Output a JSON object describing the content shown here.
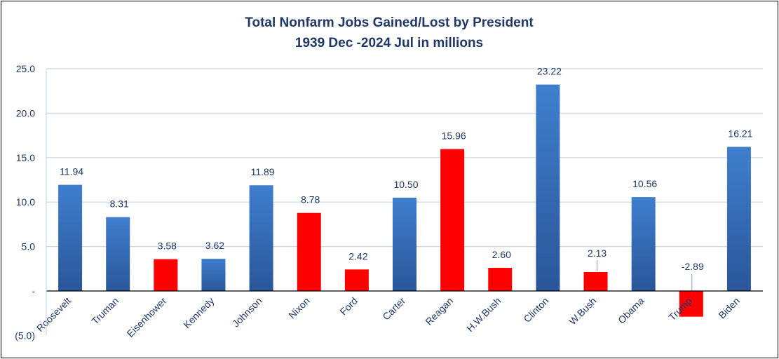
{
  "chart_data": {
    "type": "bar",
    "title": "Total Nonfarm Jobs Gained/Lost by President",
    "subtitle": "1939 Dec -2024 Jul in millions",
    "xlabel": "",
    "ylabel": "",
    "ylim": [
      -5,
      25
    ],
    "yticks": [
      {
        "value": 25,
        "label": "25.0"
      },
      {
        "value": 20,
        "label": "20.0"
      },
      {
        "value": 15,
        "label": "15.0"
      },
      {
        "value": 10,
        "label": "10.0"
      },
      {
        "value": 5,
        "label": "5.0"
      },
      {
        "value": 0,
        "label": "-"
      },
      {
        "value": -5,
        "label": "(5.0)"
      }
    ],
    "grid": true,
    "legend": "none",
    "categories": [
      "Roosevelt",
      "Truman",
      "Eisenhower",
      "Kennedy",
      "Johnson",
      "Nixon",
      "Ford",
      "Carter",
      "Reagan",
      "H.W.Bush",
      "Clinton",
      "W.Bush",
      "Obama",
      "Trump",
      "Biden"
    ],
    "values": [
      11.94,
      8.31,
      3.58,
      3.62,
      11.89,
      8.78,
      2.42,
      10.5,
      15.96,
      2.6,
      23.22,
      2.13,
      10.56,
      -2.89,
      16.21
    ],
    "value_labels": [
      "11.94",
      "8.31",
      "3.58",
      "3.62",
      "11.89",
      "8.78",
      "2.42",
      "10.50",
      "15.96",
      "2.60",
      "23.22",
      "2.13",
      "10.56",
      "-2.89",
      "16.21"
    ],
    "party_colors": [
      "blue",
      "blue",
      "red",
      "blue",
      "blue",
      "red",
      "red",
      "blue",
      "red",
      "red",
      "blue",
      "red",
      "blue",
      "red",
      "blue"
    ],
    "colors": {
      "blue_top": "#3f7fce",
      "blue_bottom": "#2a5699",
      "red": "#ff0000",
      "gridline": "#c9d7ea",
      "axis": "#000000",
      "text": "#1f3864"
    }
  }
}
